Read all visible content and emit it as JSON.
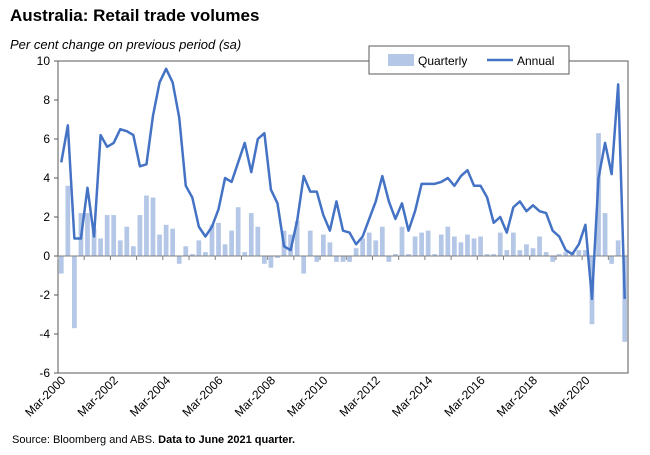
{
  "title": "Australia: Retail trade volumes",
  "subtitle": "Per cent change on previous period (sa)",
  "footer": {
    "source": "Source: Bloomberg and ABS.",
    "note": "Data to June 2021 quarter."
  },
  "colors": {
    "bar": "#b4c7e7",
    "line": "#4472c4",
    "axis": "#7f7f7f",
    "frame": "#595959"
  },
  "chart_data": {
    "type": "bar+line",
    "ylim": [
      -6,
      10
    ],
    "yticks": [
      "-6",
      "-4",
      "-2",
      "0",
      "2",
      "4",
      "6",
      "8",
      "10"
    ],
    "xtick_labels": [
      "Mar-2000",
      "Mar-2002",
      "Mar-2004",
      "Mar-2006",
      "Mar-2008",
      "Mar-2010",
      "Mar-2012",
      "Mar-2014",
      "Mar-2016",
      "Mar-2018",
      "Mar-2020"
    ],
    "x_start": "Mar-2000",
    "x_end": "Jun-2021",
    "legend_position": "top-right",
    "series": [
      {
        "name": "Quarterly",
        "type": "bar",
        "values": [
          -0.9,
          3.6,
          -3.7,
          2.2,
          2.2,
          1.4,
          0.9,
          2.1,
          2.1,
          0.8,
          1.5,
          0.5,
          2.1,
          3.1,
          3.0,
          1.1,
          1.6,
          1.4,
          -0.4,
          0.5,
          0.1,
          0.8,
          0.2,
          1.6,
          1.7,
          0.6,
          1.3,
          2.5,
          0.2,
          2.2,
          1.5,
          -0.4,
          -0.6,
          -0.1,
          1.3,
          1.1,
          1.8,
          -0.9,
          1.3,
          -0.3,
          1.1,
          0.7,
          -0.3,
          -0.3,
          -0.3,
          0.4,
          0.9,
          1.2,
          0.8,
          1.5,
          -0.3,
          0.1,
          1.5,
          0.1,
          1.0,
          1.2,
          1.3,
          0.1,
          1.1,
          1.5,
          1.0,
          0.7,
          1.1,
          0.9,
          1.0,
          0.1,
          0.1,
          1.2,
          0.3,
          1.2,
          0.3,
          0.6,
          0.4,
          1.0,
          0.2,
          -0.3,
          0.1,
          0.2,
          0.2,
          0.3,
          0.3,
          -3.5,
          6.3,
          2.2,
          -0.4,
          0.8,
          -4.4
        ]
      },
      {
        "name": "Annual",
        "type": "line",
        "values": [
          4.8,
          6.7,
          0.9,
          0.9,
          3.5,
          1.0,
          6.2,
          5.6,
          5.8,
          6.5,
          6.4,
          6.2,
          4.6,
          4.7,
          7.2,
          8.9,
          9.6,
          8.9,
          7.1,
          3.6,
          3.0,
          1.5,
          1.0,
          1.5,
          2.4,
          4.0,
          3.8,
          4.8,
          5.8,
          4.3,
          6.0,
          6.3,
          3.4,
          2.7,
          0.5,
          0.3,
          1.8,
          4.1,
          3.3,
          3.3,
          2.1,
          1.3,
          2.8,
          1.3,
          1.2,
          0.6,
          1.0,
          1.9,
          2.8,
          4.1,
          2.8,
          1.9,
          2.7,
          1.3,
          2.3,
          3.7,
          3.7,
          3.7,
          3.8,
          4.0,
          3.6,
          4.1,
          4.4,
          3.6,
          3.6,
          3.0,
          1.7,
          2.0,
          1.2,
          2.5,
          2.8,
          2.3,
          2.6,
          2.3,
          2.2,
          1.3,
          1.0,
          0.3,
          0.1,
          0.6,
          1.6,
          -2.2,
          4.0,
          5.8,
          4.2,
          8.8,
          -2.2
        ]
      }
    ]
  }
}
